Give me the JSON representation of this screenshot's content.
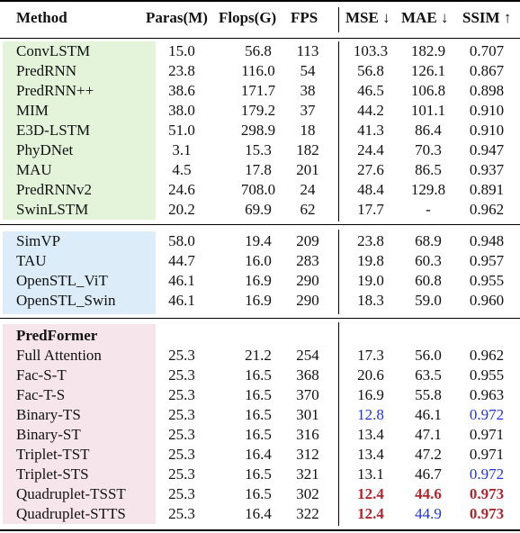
{
  "header": {
    "method": "Method",
    "params": "Paras(M)",
    "flops": "Flops(G)",
    "fps": "FPS",
    "mse": "MSE ↓",
    "mae": "MAE ↓",
    "ssim": "SSIM ↑"
  },
  "colors": {
    "best": "#b5252c",
    "second": "#1e33e6",
    "group1_bg": "#e3f4da",
    "group2_bg": "#dcecf8",
    "group3_bg": "#f6e6ec"
  },
  "group1": {
    "rows": [
      {
        "name": "ConvLSTM",
        "params": "15.0",
        "flops": "56.8",
        "fps": "113",
        "mse": "103.3",
        "mae": "182.9",
        "ssim": "0.707"
      },
      {
        "name": "PredRNN",
        "params": "23.8",
        "flops": "116.0",
        "fps": "54",
        "mse": "56.8",
        "mae": "126.1",
        "ssim": "0.867"
      },
      {
        "name": "PredRNN++",
        "params": "38.6",
        "flops": "171.7",
        "fps": "38",
        "mse": "46.5",
        "mae": "106.8",
        "ssim": "0.898"
      },
      {
        "name": "MIM",
        "params": "38.0",
        "flops": "179.2",
        "fps": "37",
        "mse": "44.2",
        "mae": "101.1",
        "ssim": "0.910"
      },
      {
        "name": "E3D-LSTM",
        "params": "51.0",
        "flops": "298.9",
        "fps": "18",
        "mse": "41.3",
        "mae": "86.4",
        "ssim": "0.910"
      },
      {
        "name": "PhyDNet",
        "params": "3.1",
        "flops": "15.3",
        "fps": "182",
        "mse": "24.4",
        "mae": "70.3",
        "ssim": "0.947"
      },
      {
        "name": "MAU",
        "params": "4.5",
        "flops": "17.8",
        "fps": "201",
        "mse": "27.6",
        "mae": "86.5",
        "ssim": "0.937"
      },
      {
        "name": "PredRNNv2",
        "params": "24.6",
        "flops": "708.0",
        "fps": "24",
        "mse": "48.4",
        "mae": "129.8",
        "ssim": "0.891"
      },
      {
        "name": "SwinLSTM",
        "params": "20.2",
        "flops": "69.9",
        "fps": "62",
        "mse": "17.7",
        "mae": "-",
        "ssim": "0.962"
      }
    ]
  },
  "group2": {
    "rows": [
      {
        "name": "SimVP",
        "params": "58.0",
        "flops": "19.4",
        "fps": "209",
        "mse": "23.8",
        "mae": "68.9",
        "ssim": "0.948"
      },
      {
        "name": "TAU",
        "params": "44.7",
        "flops": "16.0",
        "fps": "283",
        "mse": "19.8",
        "mae": "60.3",
        "ssim": "0.957"
      },
      {
        "name": "OpenSTL_ViT",
        "params": "46.1",
        "flops": "16.9",
        "fps": "290",
        "mse": "19.0",
        "mae": "60.8",
        "ssim": "0.955"
      },
      {
        "name": "OpenSTL_Swin",
        "params": "46.1",
        "flops": "16.9",
        "fps": "290",
        "mse": "18.3",
        "mae": "59.0",
        "ssim": "0.960"
      }
    ]
  },
  "group3": {
    "title": "PredFormer",
    "rows": [
      {
        "name": "Full Attention",
        "params": "25.3",
        "flops": "21.2",
        "fps": "254",
        "mse": "17.3",
        "mae": "56.0",
        "ssim": "0.962"
      },
      {
        "name": "Fac-S-T",
        "params": "25.3",
        "flops": "16.5",
        "fps": "368",
        "mse": "20.6",
        "mae": "63.5",
        "ssim": "0.955"
      },
      {
        "name": "Fac-T-S",
        "params": "25.3",
        "flops": "16.5",
        "fps": "370",
        "mse": "16.9",
        "mae": "55.8",
        "ssim": "0.963"
      },
      {
        "name": "Binary-TS",
        "params": "25.3",
        "flops": "16.5",
        "fps": "301",
        "mse": "12.8",
        "mae": "46.1",
        "ssim": "0.972",
        "mse_style": "second",
        "ssim_style": "second"
      },
      {
        "name": "Binary-ST",
        "params": "25.3",
        "flops": "16.5",
        "fps": "316",
        "mse": "13.4",
        "mae": "47.1",
        "ssim": "0.971"
      },
      {
        "name": "Triplet-TST",
        "params": "25.3",
        "flops": "16.4",
        "fps": "312",
        "mse": "13.4",
        "mae": "47.2",
        "ssim": "0.971"
      },
      {
        "name": "Triplet-STS",
        "params": "25.3",
        "flops": "16.5",
        "fps": "321",
        "mse": "13.1",
        "mae": "46.7",
        "ssim": "0.972",
        "ssim_style": "second"
      },
      {
        "name": "Quadruplet-TSST",
        "params": "25.3",
        "flops": "16.5",
        "fps": "302",
        "mse": "12.4",
        "mae": "44.6",
        "ssim": "0.973",
        "mse_style": "best",
        "mae_style": "best",
        "ssim_style": "best"
      },
      {
        "name": "Quadruplet-STTS",
        "params": "25.3",
        "flops": "16.4",
        "fps": "322",
        "mse": "12.4",
        "mae": "44.9",
        "ssim": "0.973",
        "mse_style": "best",
        "mae_style": "second",
        "ssim_style": "best"
      }
    ]
  }
}
